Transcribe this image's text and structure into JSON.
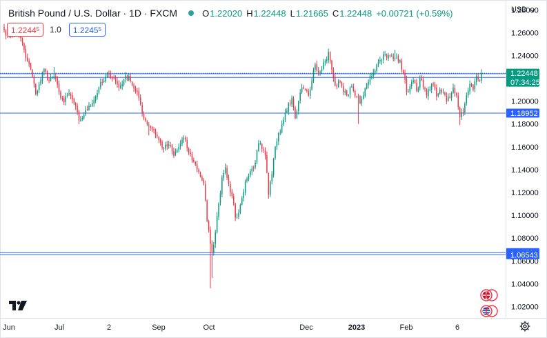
{
  "header": {
    "title": "British Pound / U.S. Dollar · 1D · FXCM",
    "ohlc": [
      {
        "key": "O",
        "value": "1.22020"
      },
      {
        "key": "H",
        "value": "1.22448"
      },
      {
        "key": "L",
        "value": "1.21665"
      },
      {
        "key": "C",
        "value": "1.22448"
      }
    ],
    "change": "+0.00721 (+0.59%)",
    "status_color": "#26a69a"
  },
  "quote": {
    "sell_main": "1.2244",
    "sell_pip": "5",
    "spread": "1.0",
    "buy_main": "1.2245",
    "buy_pip": "5"
  },
  "currency_selector": "USD",
  "colors": {
    "up": "#089981",
    "down": "#f23645",
    "hline": "#2962ff",
    "last_price_bg": "#089981"
  },
  "chart_data": {
    "type": "candlestick",
    "symbol": "GBPUSD",
    "interval": "1D",
    "ylim": [
      1.01,
      1.285
    ],
    "y_ticks": [
      "1.28000",
      "1.26000",
      "1.24000",
      "1.22000",
      "1.20000",
      "1.18000",
      "1.16000",
      "1.14000",
      "1.12000",
      "1.10000",
      "1.08000",
      "1.06000",
      "1.04000",
      "1.02000"
    ],
    "x_ticks": [
      "Jun",
      "Jul",
      "2",
      "Sep",
      "Oct",
      "Dec",
      "2023",
      "Feb",
      "6"
    ],
    "last_price": {
      "value": 1.22448,
      "label": "1.22448",
      "countdown": "07:34:25"
    },
    "horizontal_lines": [
      {
        "value": 1.22405,
        "label": "1.22405"
      },
      {
        "value": 1.22081,
        "label": "1.22081"
      },
      {
        "value": 1.18952,
        "label": "1.18952"
      },
      {
        "value": 1.06729,
        "label": "1.06729"
      },
      {
        "value": 1.06543,
        "label": "1.06543"
      }
    ],
    "close_anchors": [
      {
        "i": 0,
        "c": 1.262
      },
      {
        "i": 3,
        "c": 1.258
      },
      {
        "i": 8,
        "c": 1.261
      },
      {
        "i": 10,
        "c": 1.255
      },
      {
        "i": 13,
        "c": 1.238
      },
      {
        "i": 16,
        "c": 1.228
      },
      {
        "i": 19,
        "c": 1.206
      },
      {
        "i": 21,
        "c": 1.215
      },
      {
        "i": 24,
        "c": 1.228
      },
      {
        "i": 27,
        "c": 1.218
      },
      {
        "i": 30,
        "c": 1.222
      },
      {
        "i": 33,
        "c": 1.208
      },
      {
        "i": 36,
        "c": 1.199
      },
      {
        "i": 39,
        "c": 1.207
      },
      {
        "i": 42,
        "c": 1.198
      },
      {
        "i": 45,
        "c": 1.183
      },
      {
        "i": 48,
        "c": 1.188
      },
      {
        "i": 51,
        "c": 1.196
      },
      {
        "i": 54,
        "c": 1.201
      },
      {
        "i": 57,
        "c": 1.212
      },
      {
        "i": 60,
        "c": 1.218
      },
      {
        "i": 63,
        "c": 1.224
      },
      {
        "i": 66,
        "c": 1.22
      },
      {
        "i": 69,
        "c": 1.212
      },
      {
        "i": 72,
        "c": 1.219
      },
      {
        "i": 75,
        "c": 1.222
      },
      {
        "i": 78,
        "c": 1.211
      },
      {
        "i": 81,
        "c": 1.203
      },
      {
        "i": 84,
        "c": 1.185
      },
      {
        "i": 87,
        "c": 1.179
      },
      {
        "i": 90,
        "c": 1.175
      },
      {
        "i": 93,
        "c": 1.166
      },
      {
        "i": 96,
        "c": 1.158
      },
      {
        "i": 99,
        "c": 1.162
      },
      {
        "i": 102,
        "c": 1.152
      },
      {
        "i": 105,
        "c": 1.16
      },
      {
        "i": 108,
        "c": 1.168
      },
      {
        "i": 111,
        "c": 1.155
      },
      {
        "i": 114,
        "c": 1.147
      },
      {
        "i": 117,
        "c": 1.138
      },
      {
        "i": 120,
        "c": 1.128
      },
      {
        "i": 122,
        "c": 1.095
      },
      {
        "i": 124,
        "c": 1.075
      },
      {
        "i": 125,
        "c": 1.068
      },
      {
        "i": 127,
        "c": 1.085
      },
      {
        "i": 129,
        "c": 1.11
      },
      {
        "i": 131,
        "c": 1.133
      },
      {
        "i": 133,
        "c": 1.142
      },
      {
        "i": 135,
        "c": 1.128
      },
      {
        "i": 137,
        "c": 1.117
      },
      {
        "i": 139,
        "c": 1.098
      },
      {
        "i": 141,
        "c": 1.102
      },
      {
        "i": 143,
        "c": 1.115
      },
      {
        "i": 145,
        "c": 1.13
      },
      {
        "i": 147,
        "c": 1.135
      },
      {
        "i": 149,
        "c": 1.141
      },
      {
        "i": 151,
        "c": 1.146
      },
      {
        "i": 153,
        "c": 1.163
      },
      {
        "i": 155,
        "c": 1.158
      },
      {
        "i": 157,
        "c": 1.152
      },
      {
        "i": 159,
        "c": 1.118
      },
      {
        "i": 161,
        "c": 1.136
      },
      {
        "i": 163,
        "c": 1.16
      },
      {
        "i": 165,
        "c": 1.172
      },
      {
        "i": 167,
        "c": 1.18
      },
      {
        "i": 169,
        "c": 1.19
      },
      {
        "i": 171,
        "c": 1.198
      },
      {
        "i": 173,
        "c": 1.203
      },
      {
        "i": 175,
        "c": 1.185
      },
      {
        "i": 177,
        "c": 1.2
      },
      {
        "i": 179,
        "c": 1.212
      },
      {
        "i": 181,
        "c": 1.21
      },
      {
        "i": 183,
        "c": 1.205
      },
      {
        "i": 185,
        "c": 1.218
      },
      {
        "i": 187,
        "c": 1.232
      },
      {
        "i": 189,
        "c": 1.225
      },
      {
        "i": 191,
        "c": 1.228
      },
      {
        "i": 193,
        "c": 1.235
      },
      {
        "i": 195,
        "c": 1.243
      },
      {
        "i": 196,
        "c": 1.235
      },
      {
        "i": 198,
        "c": 1.22
      },
      {
        "i": 200,
        "c": 1.213
      },
      {
        "i": 202,
        "c": 1.217
      },
      {
        "i": 204,
        "c": 1.208
      },
      {
        "i": 206,
        "c": 1.205
      },
      {
        "i": 208,
        "c": 1.212
      },
      {
        "i": 210,
        "c": 1.209
      },
      {
        "i": 212,
        "c": 1.204
      },
      {
        "i": 214,
        "c": 1.198
      },
      {
        "i": 216,
        "c": 1.205
      },
      {
        "i": 218,
        "c": 1.215
      },
      {
        "i": 220,
        "c": 1.222
      },
      {
        "i": 222,
        "c": 1.225
      },
      {
        "i": 224,
        "c": 1.232
      },
      {
        "i": 226,
        "c": 1.236
      },
      {
        "i": 228,
        "c": 1.241
      },
      {
        "i": 230,
        "c": 1.238
      },
      {
        "i": 232,
        "c": 1.24
      },
      {
        "i": 234,
        "c": 1.237
      },
      {
        "i": 236,
        "c": 1.239
      },
      {
        "i": 238,
        "c": 1.236
      },
      {
        "i": 240,
        "c": 1.224
      },
      {
        "i": 242,
        "c": 1.208
      },
      {
        "i": 244,
        "c": 1.213
      },
      {
        "i": 246,
        "c": 1.218
      },
      {
        "i": 248,
        "c": 1.209
      },
      {
        "i": 250,
        "c": 1.22
      },
      {
        "i": 252,
        "c": 1.212
      },
      {
        "i": 254,
        "c": 1.205
      },
      {
        "i": 256,
        "c": 1.21
      },
      {
        "i": 258,
        "c": 1.215
      },
      {
        "i": 260,
        "c": 1.204
      },
      {
        "i": 262,
        "c": 1.21
      },
      {
        "i": 264,
        "c": 1.208
      },
      {
        "i": 266,
        "c": 1.2
      },
      {
        "i": 268,
        "c": 1.203
      },
      {
        "i": 270,
        "c": 1.212
      },
      {
        "i": 272,
        "c": 1.205
      },
      {
        "i": 274,
        "c": 1.186
      },
      {
        "i": 276,
        "c": 1.19
      },
      {
        "i": 278,
        "c": 1.205
      },
      {
        "i": 280,
        "c": 1.215
      },
      {
        "i": 282,
        "c": 1.21
      },
      {
        "i": 284,
        "c": 1.222
      },
      {
        "i": 286,
        "c": 1.218
      },
      {
        "i": 287,
        "c": 1.22448
      }
    ],
    "spikes": [
      {
        "i": 8,
        "h": 1.268
      },
      {
        "i": 30,
        "h": 1.23
      },
      {
        "i": 87,
        "l": 1.17
      },
      {
        "i": 124,
        "l": 1.036
      },
      {
        "i": 125,
        "l": 1.045
      },
      {
        "i": 195,
        "h": 1.246
      },
      {
        "i": 213,
        "l": 1.18
      },
      {
        "i": 235,
        "h": 1.245
      },
      {
        "i": 274,
        "l": 1.179
      }
    ]
  }
}
